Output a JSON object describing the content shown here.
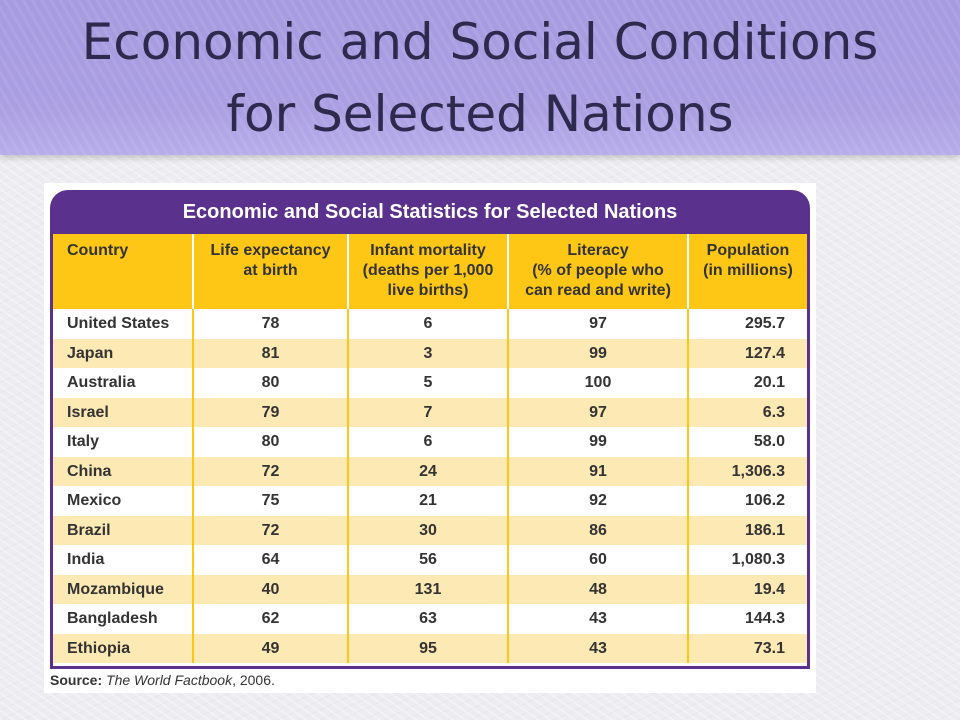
{
  "slide": {
    "title_line1": "Economic and Social Conditions",
    "title_line2": "for Selected Nations"
  },
  "table": {
    "title": "Economic and Social Statistics for Selected Nations",
    "headers": [
      "Country",
      "Life expectancy\nat birth",
      "Infant mortality\n(deaths per 1,000\nlive births)",
      "Literacy\n(% of people who\ncan read and write)",
      "Population\n(in millions)"
    ],
    "rows": [
      [
        "United States",
        "78",
        "6",
        "97",
        "295.7"
      ],
      [
        "Japan",
        "81",
        "3",
        "99",
        "127.4"
      ],
      [
        "Australia",
        "80",
        "5",
        "100",
        "20.1"
      ],
      [
        "Israel",
        "79",
        "7",
        "97",
        "6.3"
      ],
      [
        "Italy",
        "80",
        "6",
        "99",
        "58.0"
      ],
      [
        "China",
        "72",
        "24",
        "91",
        "1,306.3"
      ],
      [
        "Mexico",
        "75",
        "21",
        "92",
        "106.2"
      ],
      [
        "Brazil",
        "72",
        "30",
        "86",
        "186.1"
      ],
      [
        "India",
        "64",
        "56",
        "60",
        "1,080.3"
      ],
      [
        "Mozambique",
        "40",
        "131",
        "48",
        "19.4"
      ],
      [
        "Bangladesh",
        "62",
        "63",
        "43",
        "144.3"
      ],
      [
        "Ethiopia",
        "49",
        "95",
        "43",
        "73.1"
      ]
    ],
    "source_label": "Source:",
    "source_work": "The World Factbook",
    "source_year": ", 2006."
  },
  "colors": {
    "header_purple": "#5a318c",
    "column_yellow": "#fec716",
    "row_tint": "#fde9b4",
    "title_band": "#a79be0"
  }
}
